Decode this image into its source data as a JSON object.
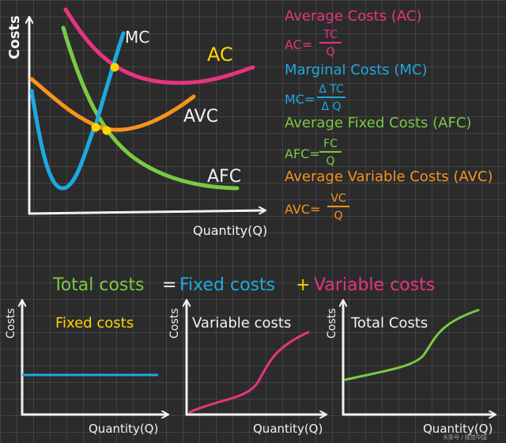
{
  "colors": {
    "background": "#2b2b2b",
    "chalk_white": "#f2f2f2",
    "ac_pink": "#e8337f",
    "mc_blue": "#1ea8e0",
    "afc_green": "#7ac943",
    "avc_orange": "#f7931e",
    "intersection_yellow": "#ffd400",
    "plus_yellow": "#f5d000"
  },
  "main_chart": {
    "y_axis_label": "Costs",
    "x_axis_label": "Quantity(Q)",
    "curve_labels": {
      "mc": "MC",
      "ac": "AC",
      "avc": "AVC",
      "afc": "AFC"
    }
  },
  "legend": {
    "ac_title": "Average Costs (AC)",
    "ac_lhs": "AC=",
    "ac_num": "TC",
    "ac_den": "Q",
    "mc_title": "Marginal Costs (MC)",
    "mc_lhs": "MC=",
    "mc_num": "Δ TC",
    "mc_den": "Δ Q",
    "afc_title": "Average Fixed Costs (AFC)",
    "afc_lhs": "AFC=",
    "afc_num": "FC",
    "afc_den": "Q",
    "avc_title": "Average Variable Costs (AVC)",
    "avc_lhs": "AVC=",
    "avc_num": "VC",
    "avc_den": "Q"
  },
  "equation": {
    "total": "Total costs",
    "equals": "=",
    "fixed": "Fixed costs",
    "plus": "+",
    "variable": "Variable costs"
  },
  "small_charts": [
    {
      "title": "Fixed costs",
      "y_axis_label": "Costs",
      "x_axis_label": "Quantity(Q)"
    },
    {
      "title": "Variable costs",
      "y_axis_label": "Costs",
      "x_axis_label": "Quantity(Q)"
    },
    {
      "title": "Total Costs",
      "y_axis_label": "Costs",
      "x_axis_label": "Quantity(Q)"
    }
  ],
  "watermark": "头条号 / 视觉中国"
}
